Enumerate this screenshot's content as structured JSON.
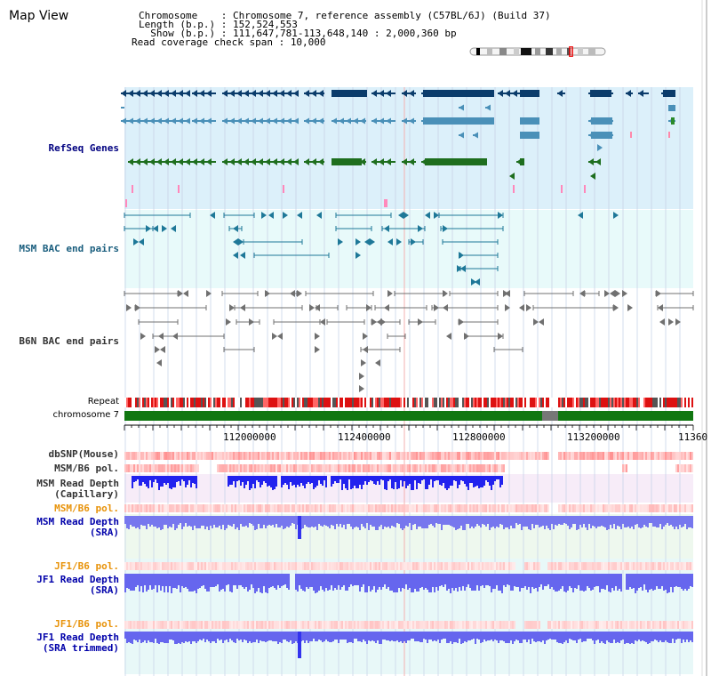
{
  "view_title": "Map View",
  "info": {
    "chromosome_label": "Chromosome    : ",
    "chromosome_value": "Chromosome 7, reference assembly (C57BL/6J) (Build 37)",
    "length_label": "Length (b.p.) : ",
    "length_value": "152,524,553",
    "show_label": "  Show (b.p.) : ",
    "show_value": "111,647,781-113,648,140 : 2,000,360 bp",
    "coverage_label": "Read coverage check span : ",
    "coverage_value": "10,000"
  },
  "tracks": {
    "refseq": "RefSeq Genes",
    "msm_bac": "MSM BAC end pairs",
    "b6n_bac": "B6N BAC end pairs",
    "repeat": "Repeat",
    "chromosome": "chromosome 7",
    "dbsnp": "dbSNP(Mouse)",
    "msm_b6_pol_1": "MSM/B6 pol.",
    "msm_depth_cap_1": "MSM Read Depth",
    "msm_depth_cap_2": "(Capillary)",
    "msm_b6_pol_2": "MSM/B6 pol.",
    "msm_depth_sra_1": "MSM Read Depth",
    "msm_depth_sra_2": "(SRA)",
    "jf1_b6_pol_1": "JF1/B6 pol.",
    "jf1_depth_sra_1": "JF1 Read Depth",
    "jf1_depth_sra_2": "(SRA)",
    "jf1_b6_pol_2": "JF1/B6 pol.",
    "jf1_depth_trim_1": "JF1 Read Depth",
    "jf1_depth_trim_2": "(SRA trimmed)"
  },
  "ruler": {
    "ticks": [
      "112000000",
      "112400000",
      "112800000",
      "113200000",
      "11360"
    ]
  },
  "colors": {
    "refseq_bg": "#dcf0fa",
    "msm_bg": "#e8fafa",
    "dark_gene": "#0b3c6b",
    "mid_gene": "#4a90b8",
    "green_gene": "#1e6e1e",
    "chromosome": "#117711",
    "snp": "#ff7777",
    "depth": "#5555ee"
  }
}
